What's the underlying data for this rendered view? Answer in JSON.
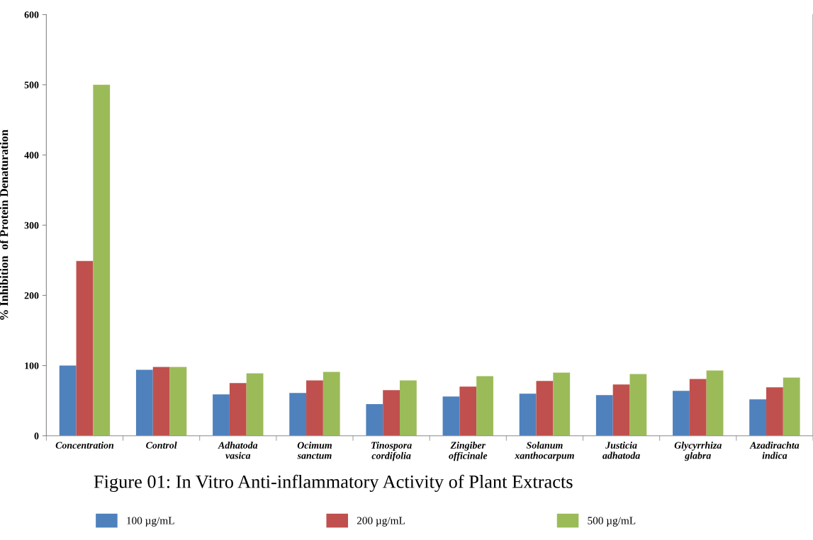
{
  "chart_data": {
    "type": "bar",
    "title": "Figure 01: In Vitro Anti-inflammatory Activity of Plant Extracts",
    "ylabel": "% Inhibition  of Protein Denaturation",
    "categories": [
      "Concentration",
      "Control",
      "Adhatoda\nvasica",
      "Ocimum\nsanctum",
      "Tinospora\ncordifolia",
      "Zingiber\nofficinale",
      "Solanum\nxanthocarpum",
      "Justicia\nadhatoda",
      "Glycyrrhiza\nglabra",
      "Azadirachta\nindica"
    ],
    "series": [
      {
        "name": "100 µg/mL",
        "color": "#4f81bd",
        "values": [
          100,
          94,
          59,
          61,
          45,
          56,
          60,
          58,
          64,
          52
        ]
      },
      {
        "name": "200 µg/mL",
        "color": "#c0504d",
        "values": [
          249,
          98,
          75,
          79,
          65,
          70,
          78,
          73,
          81,
          69
        ]
      },
      {
        "name": "500 µg/mL",
        "color": "#9bbb59",
        "values": [
          500,
          98,
          89,
          91,
          79,
          85,
          90,
          88,
          93,
          83
        ]
      }
    ],
    "ylim": [
      0,
      600
    ],
    "yticks": [
      0,
      100,
      200,
      300,
      400,
      500,
      600
    ],
    "grid": false,
    "legend": "bottom"
  }
}
